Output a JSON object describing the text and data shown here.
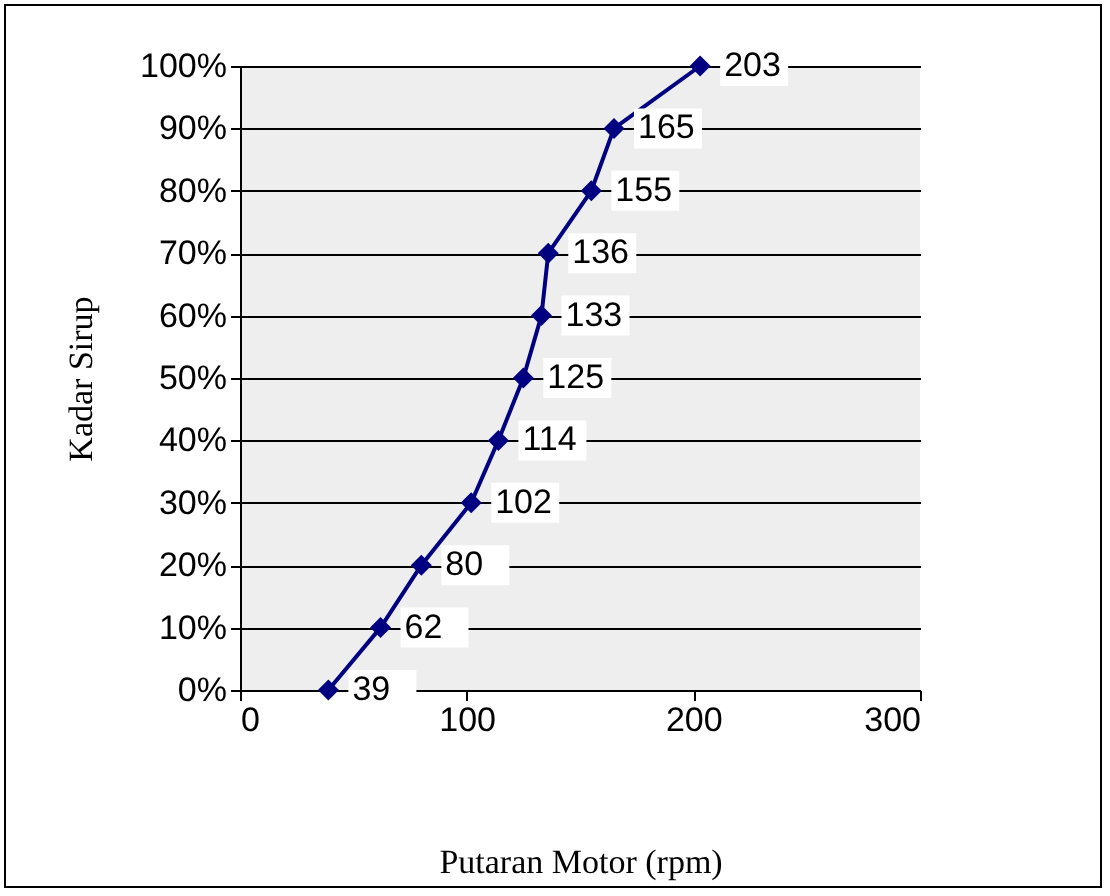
{
  "chart_data": {
    "type": "line",
    "xlabel": "Putaran Motor (rpm)",
    "ylabel": "Kadar Sirup",
    "x": [
      39,
      62,
      80,
      102,
      114,
      125,
      133,
      136,
      155,
      165,
      203
    ],
    "series": [
      {
        "color": "#000080",
        "values": [
          0,
          10,
          20,
          30,
          40,
          50,
          60,
          70,
          80,
          90,
          100
        ]
      }
    ],
    "annotations": [
      {
        "text": "39",
        "x": 39,
        "y": 0
      },
      {
        "text": "62",
        "x": 62,
        "y": 10
      },
      {
        "text": "80",
        "x": 80,
        "y": 20
      },
      {
        "text": "102",
        "x": 102,
        "y": 30
      },
      {
        "text": "114",
        "x": 114,
        "y": 40
      },
      {
        "text": "125",
        "x": 125,
        "y": 50
      },
      {
        "text": "133",
        "x": 133,
        "y": 60
      },
      {
        "text": "136",
        "x": 136,
        "y": 70
      },
      {
        "text": "155",
        "x": 155,
        "y": 80
      },
      {
        "text": "165",
        "x": 165,
        "y": 90
      },
      {
        "text": "203",
        "x": 203,
        "y": 100
      }
    ],
    "xlim": [
      0,
      300
    ],
    "xticks": [
      0,
      100,
      200,
      300
    ],
    "ylim": [
      0,
      100
    ],
    "yticks": [
      {
        "value": 0,
        "label": "0%"
      },
      {
        "value": 10,
        "label": "10%"
      },
      {
        "value": 20,
        "label": "20%"
      },
      {
        "value": 30,
        "label": "30%"
      },
      {
        "value": 40,
        "label": "40%"
      },
      {
        "value": 50,
        "label": "50%"
      },
      {
        "value": 60,
        "label": "60%"
      },
      {
        "value": 70,
        "label": "70%"
      },
      {
        "value": 80,
        "label": "80%"
      },
      {
        "value": 90,
        "label": "90%"
      },
      {
        "value": 100,
        "label": "100%"
      }
    ],
    "grid": "y",
    "marker": "diamond",
    "line_style": "solid",
    "legend": false
  }
}
